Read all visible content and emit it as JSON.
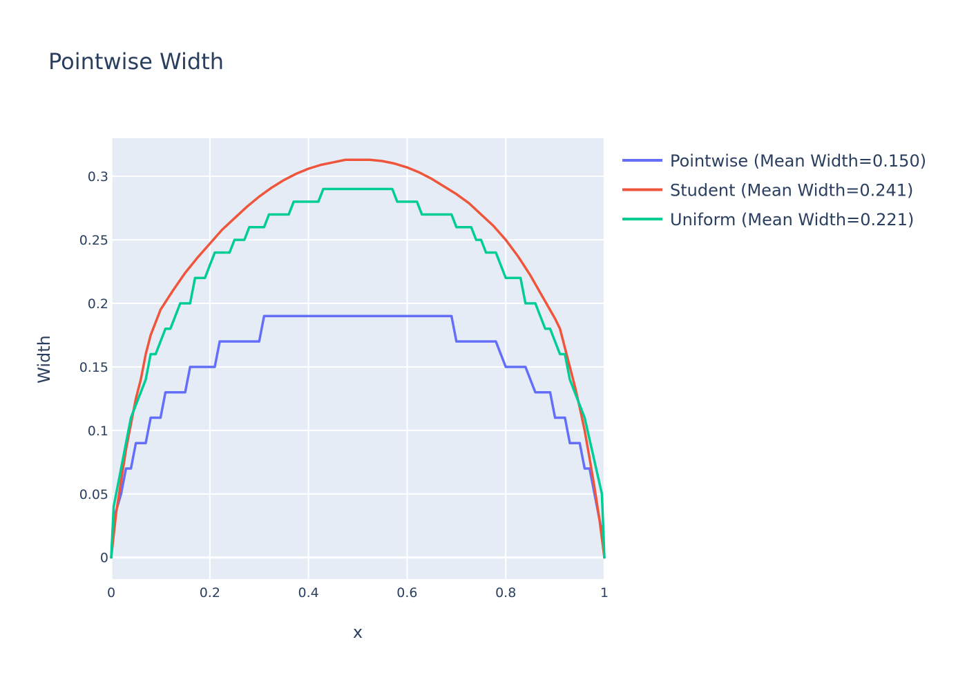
{
  "chart_data": {
    "type": "line",
    "title": "Pointwise Width",
    "xlabel": "x",
    "ylabel": "Width",
    "xlim": [
      0,
      1
    ],
    "ylim": [
      -0.017,
      0.33
    ],
    "x_ticks": [
      0,
      0.2,
      0.4,
      0.6,
      0.8,
      1
    ],
    "x_tick_labels": [
      "0",
      "0.2",
      "0.4",
      "0.6",
      "0.8",
      "1"
    ],
    "y_ticks": [
      0,
      0.05,
      0.1,
      0.15,
      0.2,
      0.25,
      0.3
    ],
    "y_tick_labels": [
      "0",
      "0.05",
      "0.1",
      "0.15",
      "0.2",
      "0.25",
      "0.3"
    ],
    "grid": true,
    "plot_background": "#e5ecf6",
    "legend_position": "top-right (outside plot)",
    "series": [
      {
        "name": "Pointwise (Mean Width=0.150)",
        "color": "#636efa",
        "points": [
          [
            0,
            0
          ],
          [
            0.005,
            0.03
          ],
          [
            0.02,
            0.05
          ],
          [
            0.03,
            0.07
          ],
          [
            0.04,
            0.07
          ],
          [
            0.05,
            0.09
          ],
          [
            0.07,
            0.09
          ],
          [
            0.08,
            0.11
          ],
          [
            0.1,
            0.11
          ],
          [
            0.11,
            0.13
          ],
          [
            0.15,
            0.13
          ],
          [
            0.16,
            0.15
          ],
          [
            0.21,
            0.15
          ],
          [
            0.22,
            0.17
          ],
          [
            0.3,
            0.17
          ],
          [
            0.31,
            0.19
          ],
          [
            0.69,
            0.19
          ],
          [
            0.7,
            0.17
          ],
          [
            0.78,
            0.17
          ],
          [
            0.8,
            0.15
          ],
          [
            0.84,
            0.15
          ],
          [
            0.86,
            0.13
          ],
          [
            0.89,
            0.13
          ],
          [
            0.9,
            0.11
          ],
          [
            0.92,
            0.11
          ],
          [
            0.93,
            0.09
          ],
          [
            0.95,
            0.09
          ],
          [
            0.96,
            0.07
          ],
          [
            0.97,
            0.07
          ],
          [
            0.98,
            0.05
          ],
          [
            0.995,
            0.02
          ],
          [
            1,
            0
          ]
        ]
      },
      {
        "name": "Student (Mean Width=0.241)",
        "color": "#ef553b",
        "points": [
          [
            0,
            0
          ],
          [
            0.01,
            0.035
          ],
          [
            0.02,
            0.06
          ],
          [
            0.03,
            0.085
          ],
          [
            0.04,
            0.105
          ],
          [
            0.05,
            0.125
          ],
          [
            0.06,
            0.14
          ],
          [
            0.07,
            0.16
          ],
          [
            0.08,
            0.175
          ],
          [
            0.09,
            0.185
          ],
          [
            0.1,
            0.195
          ],
          [
            0.125,
            0.21
          ],
          [
            0.15,
            0.224
          ],
          [
            0.175,
            0.236
          ],
          [
            0.2,
            0.247
          ],
          [
            0.225,
            0.258
          ],
          [
            0.25,
            0.267
          ],
          [
            0.275,
            0.276
          ],
          [
            0.3,
            0.284
          ],
          [
            0.325,
            0.291
          ],
          [
            0.35,
            0.297
          ],
          [
            0.375,
            0.302
          ],
          [
            0.4,
            0.306
          ],
          [
            0.425,
            0.309
          ],
          [
            0.45,
            0.311
          ],
          [
            0.475,
            0.313
          ],
          [
            0.5,
            0.313
          ],
          [
            0.525,
            0.313
          ],
          [
            0.55,
            0.312
          ],
          [
            0.575,
            0.31
          ],
          [
            0.6,
            0.307
          ],
          [
            0.625,
            0.303
          ],
          [
            0.65,
            0.298
          ],
          [
            0.675,
            0.292
          ],
          [
            0.7,
            0.286
          ],
          [
            0.725,
            0.279
          ],
          [
            0.75,
            0.27
          ],
          [
            0.775,
            0.261
          ],
          [
            0.8,
            0.25
          ],
          [
            0.825,
            0.237
          ],
          [
            0.85,
            0.222
          ],
          [
            0.875,
            0.205
          ],
          [
            0.9,
            0.188
          ],
          [
            0.91,
            0.18
          ],
          [
            0.92,
            0.165
          ],
          [
            0.93,
            0.15
          ],
          [
            0.94,
            0.135
          ],
          [
            0.95,
            0.118
          ],
          [
            0.96,
            0.1
          ],
          [
            0.97,
            0.078
          ],
          [
            0.98,
            0.055
          ],
          [
            0.99,
            0.03
          ],
          [
            1,
            0
          ]
        ]
      },
      {
        "name": "Uniform (Mean Width=0.221)",
        "color": "#00cc96",
        "points": [
          [
            0,
            0
          ],
          [
            0.005,
            0.04
          ],
          [
            0.02,
            0.07
          ],
          [
            0.04,
            0.11
          ],
          [
            0.05,
            0.12
          ],
          [
            0.07,
            0.14
          ],
          [
            0.08,
            0.16
          ],
          [
            0.09,
            0.16
          ],
          [
            0.11,
            0.18
          ],
          [
            0.12,
            0.18
          ],
          [
            0.14,
            0.2
          ],
          [
            0.16,
            0.2
          ],
          [
            0.17,
            0.22
          ],
          [
            0.19,
            0.22
          ],
          [
            0.21,
            0.24
          ],
          [
            0.24,
            0.24
          ],
          [
            0.25,
            0.25
          ],
          [
            0.27,
            0.25
          ],
          [
            0.28,
            0.26
          ],
          [
            0.31,
            0.26
          ],
          [
            0.32,
            0.27
          ],
          [
            0.36,
            0.27
          ],
          [
            0.37,
            0.28
          ],
          [
            0.42,
            0.28
          ],
          [
            0.43,
            0.29
          ],
          [
            0.57,
            0.29
          ],
          [
            0.58,
            0.28
          ],
          [
            0.62,
            0.28
          ],
          [
            0.63,
            0.27
          ],
          [
            0.69,
            0.27
          ],
          [
            0.7,
            0.26
          ],
          [
            0.73,
            0.26
          ],
          [
            0.74,
            0.25
          ],
          [
            0.75,
            0.25
          ],
          [
            0.76,
            0.24
          ],
          [
            0.78,
            0.24
          ],
          [
            0.8,
            0.22
          ],
          [
            0.83,
            0.22
          ],
          [
            0.84,
            0.2
          ],
          [
            0.86,
            0.2
          ],
          [
            0.88,
            0.18
          ],
          [
            0.89,
            0.18
          ],
          [
            0.91,
            0.16
          ],
          [
            0.92,
            0.16
          ],
          [
            0.93,
            0.14
          ],
          [
            0.96,
            0.11
          ],
          [
            0.995,
            0.05
          ],
          [
            1,
            0
          ]
        ]
      }
    ]
  }
}
